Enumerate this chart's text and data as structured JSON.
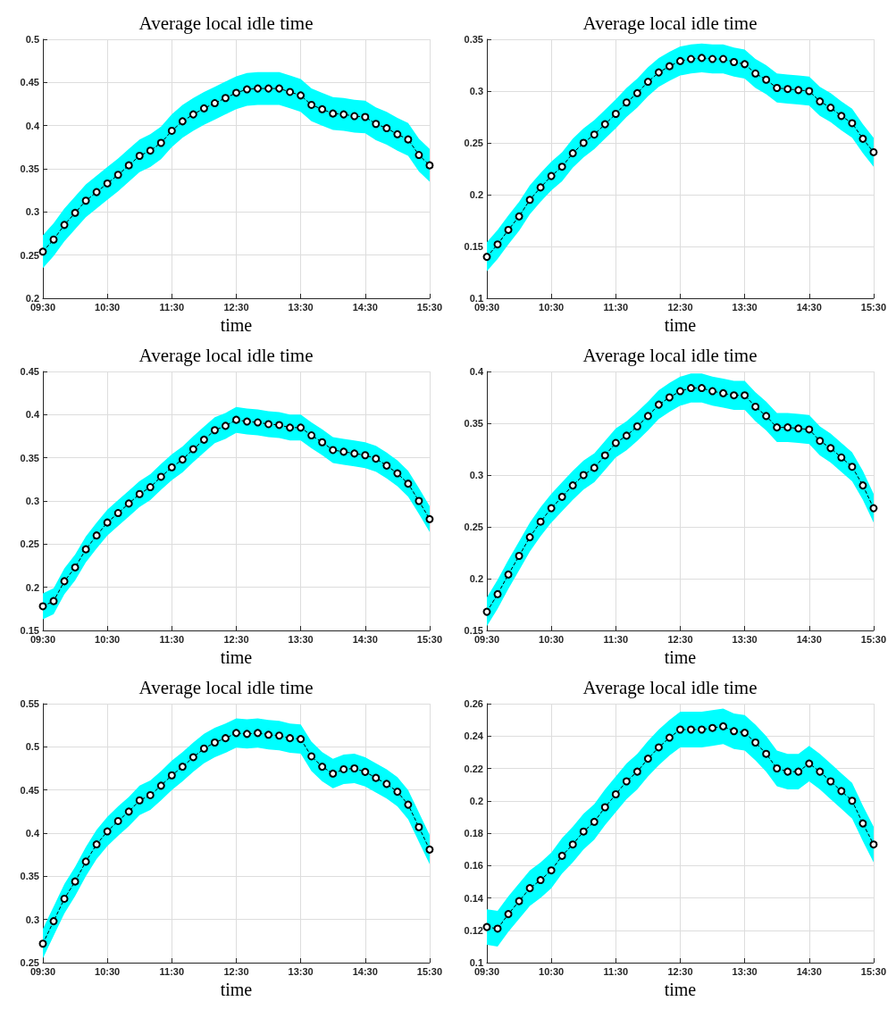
{
  "chart_data": [
    {
      "type": "line",
      "title": "Average local idle time",
      "xlabel": "time",
      "grid": true,
      "marker": "circle",
      "line_style": "dashed",
      "xlim": [
        9.5,
        15.5
      ],
      "xticks": [
        {
          "value": 9.5,
          "label": "09:30"
        },
        {
          "value": 10.5,
          "label": "10:30"
        },
        {
          "value": 11.5,
          "label": "11:30"
        },
        {
          "value": 12.5,
          "label": "12:30"
        },
        {
          "value": 13.5,
          "label": "13:30"
        },
        {
          "value": 14.5,
          "label": "14:30"
        },
        {
          "value": 15.5,
          "label": "15:30"
        }
      ],
      "ylim": [
        0.2,
        0.5
      ],
      "yticks": [
        0.2,
        0.25,
        0.3,
        0.35,
        0.4,
        0.45,
        0.5
      ],
      "x": [
        9.5,
        9.6667,
        9.8333,
        10,
        10.1667,
        10.3333,
        10.5,
        10.6667,
        10.8333,
        11,
        11.1667,
        11.3333,
        11.5,
        11.6667,
        11.8333,
        12,
        12.1667,
        12.3333,
        12.5,
        12.6667,
        12.8333,
        13,
        13.1667,
        13.3333,
        13.5,
        13.6667,
        13.8333,
        14,
        14.1667,
        14.3333,
        14.5,
        14.6667,
        14.8333,
        15,
        15.1667,
        15.3333,
        15.5
      ],
      "series": [
        {
          "color": "#000000",
          "values": [
            0.254,
            0.268,
            0.285,
            0.299,
            0.313,
            0.323,
            0.333,
            0.343,
            0.354,
            0.365,
            0.371,
            0.38,
            0.394,
            0.405,
            0.413,
            0.42,
            0.426,
            0.432,
            0.438,
            0.442,
            0.443,
            0.443,
            0.443,
            0.439,
            0.435,
            0.424,
            0.419,
            0.414,
            0.413,
            0.411,
            0.41,
            0.402,
            0.397,
            0.39,
            0.384,
            0.366,
            0.354
          ],
          "lower": [
            0.235,
            0.249,
            0.266,
            0.28,
            0.294,
            0.304,
            0.314,
            0.324,
            0.335,
            0.346,
            0.352,
            0.361,
            0.375,
            0.386,
            0.394,
            0.401,
            0.407,
            0.413,
            0.419,
            0.423,
            0.424,
            0.424,
            0.424,
            0.42,
            0.416,
            0.405,
            0.4,
            0.395,
            0.394,
            0.392,
            0.391,
            0.383,
            0.378,
            0.371,
            0.365,
            0.347,
            0.335
          ],
          "upper": [
            0.273,
            0.287,
            0.304,
            0.318,
            0.332,
            0.342,
            0.352,
            0.362,
            0.373,
            0.384,
            0.39,
            0.399,
            0.413,
            0.424,
            0.432,
            0.439,
            0.445,
            0.451,
            0.457,
            0.461,
            0.462,
            0.462,
            0.462,
            0.458,
            0.454,
            0.443,
            0.438,
            0.433,
            0.432,
            0.43,
            0.429,
            0.421,
            0.416,
            0.409,
            0.403,
            0.385,
            0.373
          ]
        }
      ]
    },
    {
      "type": "line",
      "title": "Average local idle time",
      "xlabel": "time",
      "grid": true,
      "marker": "circle",
      "line_style": "dashed",
      "xlim": [
        9.5,
        15.5
      ],
      "xticks": [
        {
          "value": 9.5,
          "label": "09:30"
        },
        {
          "value": 10.5,
          "label": "10:30"
        },
        {
          "value": 11.5,
          "label": "11:30"
        },
        {
          "value": 12.5,
          "label": "12:30"
        },
        {
          "value": 13.5,
          "label": "13:30"
        },
        {
          "value": 14.5,
          "label": "14:30"
        },
        {
          "value": 15.5,
          "label": "15:30"
        }
      ],
      "ylim": [
        0.1,
        0.35
      ],
      "yticks": [
        0.1,
        0.15,
        0.2,
        0.25,
        0.3,
        0.35
      ],
      "x": [
        9.5,
        9.6667,
        9.8333,
        10,
        10.1667,
        10.3333,
        10.5,
        10.6667,
        10.8333,
        11,
        11.1667,
        11.3333,
        11.5,
        11.6667,
        11.8333,
        12,
        12.1667,
        12.3333,
        12.5,
        12.6667,
        12.8333,
        13,
        13.1667,
        13.3333,
        13.5,
        13.6667,
        13.8333,
        14,
        14.1667,
        14.3333,
        14.5,
        14.6667,
        14.8333,
        15,
        15.1667,
        15.3333,
        15.5
      ],
      "series": [
        {
          "color": "#000000",
          "values": [
            0.14,
            0.152,
            0.166,
            0.179,
            0.195,
            0.207,
            0.218,
            0.227,
            0.24,
            0.25,
            0.258,
            0.268,
            0.278,
            0.289,
            0.298,
            0.309,
            0.318,
            0.324,
            0.329,
            0.331,
            0.332,
            0.331,
            0.331,
            0.328,
            0.326,
            0.317,
            0.311,
            0.303,
            0.302,
            0.301,
            0.3,
            0.29,
            0.284,
            0.276,
            0.269,
            0.254,
            0.241
          ],
          "lower": [
            0.126,
            0.138,
            0.152,
            0.165,
            0.181,
            0.193,
            0.204,
            0.213,
            0.226,
            0.236,
            0.244,
            0.254,
            0.264,
            0.275,
            0.284,
            0.295,
            0.304,
            0.31,
            0.315,
            0.317,
            0.318,
            0.317,
            0.317,
            0.314,
            0.312,
            0.303,
            0.297,
            0.289,
            0.288,
            0.287,
            0.286,
            0.276,
            0.27,
            0.262,
            0.255,
            0.24,
            0.227
          ],
          "upper": [
            0.154,
            0.166,
            0.18,
            0.193,
            0.209,
            0.221,
            0.232,
            0.241,
            0.254,
            0.264,
            0.272,
            0.282,
            0.292,
            0.303,
            0.312,
            0.323,
            0.332,
            0.338,
            0.343,
            0.345,
            0.346,
            0.345,
            0.345,
            0.342,
            0.34,
            0.331,
            0.325,
            0.317,
            0.316,
            0.315,
            0.314,
            0.304,
            0.298,
            0.29,
            0.283,
            0.268,
            0.255
          ]
        }
      ]
    },
    {
      "type": "line",
      "title": "Average local idle time",
      "xlabel": "time",
      "grid": true,
      "marker": "circle",
      "line_style": "dashed",
      "xlim": [
        9.5,
        15.5
      ],
      "xticks": [
        {
          "value": 9.5,
          "label": "09:30"
        },
        {
          "value": 10.5,
          "label": "10:30"
        },
        {
          "value": 11.5,
          "label": "11:30"
        },
        {
          "value": 12.5,
          "label": "12:30"
        },
        {
          "value": 13.5,
          "label": "13:30"
        },
        {
          "value": 14.5,
          "label": "14:30"
        },
        {
          "value": 15.5,
          "label": "15:30"
        }
      ],
      "ylim": [
        0.15,
        0.45
      ],
      "yticks": [
        0.15,
        0.2,
        0.25,
        0.3,
        0.35,
        0.4,
        0.45
      ],
      "x": [
        9.5,
        9.6667,
        9.8333,
        10,
        10.1667,
        10.3333,
        10.5,
        10.6667,
        10.8333,
        11,
        11.1667,
        11.3333,
        11.5,
        11.6667,
        11.8333,
        12,
        12.1667,
        12.3333,
        12.5,
        12.6667,
        12.8333,
        13,
        13.1667,
        13.3333,
        13.5,
        13.6667,
        13.8333,
        14,
        14.1667,
        14.3333,
        14.5,
        14.6667,
        14.8333,
        15,
        15.1667,
        15.3333,
        15.5
      ],
      "series": [
        {
          "color": "#000000",
          "values": [
            0.178,
            0.184,
            0.207,
            0.223,
            0.244,
            0.26,
            0.275,
            0.286,
            0.297,
            0.308,
            0.316,
            0.328,
            0.339,
            0.348,
            0.36,
            0.371,
            0.382,
            0.387,
            0.394,
            0.392,
            0.391,
            0.389,
            0.388,
            0.385,
            0.385,
            0.376,
            0.368,
            0.359,
            0.357,
            0.355,
            0.353,
            0.349,
            0.341,
            0.332,
            0.32,
            0.3,
            0.279
          ],
          "lower": [
            0.163,
            0.169,
            0.192,
            0.208,
            0.229,
            0.245,
            0.26,
            0.271,
            0.282,
            0.293,
            0.301,
            0.313,
            0.324,
            0.333,
            0.345,
            0.356,
            0.367,
            0.372,
            0.379,
            0.377,
            0.376,
            0.374,
            0.373,
            0.37,
            0.37,
            0.361,
            0.353,
            0.344,
            0.342,
            0.34,
            0.338,
            0.334,
            0.326,
            0.317,
            0.305,
            0.285,
            0.264
          ],
          "upper": [
            0.193,
            0.199,
            0.222,
            0.238,
            0.259,
            0.275,
            0.29,
            0.301,
            0.312,
            0.323,
            0.331,
            0.343,
            0.354,
            0.363,
            0.375,
            0.386,
            0.397,
            0.402,
            0.409,
            0.407,
            0.406,
            0.404,
            0.403,
            0.4,
            0.4,
            0.391,
            0.383,
            0.374,
            0.372,
            0.37,
            0.368,
            0.364,
            0.356,
            0.347,
            0.335,
            0.315,
            0.294
          ]
        }
      ]
    },
    {
      "type": "line",
      "title": "Average local idle time",
      "xlabel": "time",
      "grid": true,
      "marker": "circle",
      "line_style": "dashed",
      "xlim": [
        9.5,
        15.5
      ],
      "xticks": [
        {
          "value": 9.5,
          "label": "09:30"
        },
        {
          "value": 10.5,
          "label": "10:30"
        },
        {
          "value": 11.5,
          "label": "11:30"
        },
        {
          "value": 12.5,
          "label": "12:30"
        },
        {
          "value": 13.5,
          "label": "13:30"
        },
        {
          "value": 14.5,
          "label": "14:30"
        },
        {
          "value": 15.5,
          "label": "15:30"
        }
      ],
      "ylim": [
        0.15,
        0.4
      ],
      "yticks": [
        0.15,
        0.2,
        0.25,
        0.3,
        0.35,
        0.4
      ],
      "x": [
        9.5,
        9.6667,
        9.8333,
        10,
        10.1667,
        10.3333,
        10.5,
        10.6667,
        10.8333,
        11,
        11.1667,
        11.3333,
        11.5,
        11.6667,
        11.8333,
        12,
        12.1667,
        12.3333,
        12.5,
        12.6667,
        12.8333,
        13,
        13.1667,
        13.3333,
        13.5,
        13.6667,
        13.8333,
        14,
        14.1667,
        14.3333,
        14.5,
        14.6667,
        14.8333,
        15,
        15.1667,
        15.3333,
        15.5
      ],
      "series": [
        {
          "color": "#000000",
          "values": [
            0.168,
            0.185,
            0.204,
            0.222,
            0.24,
            0.255,
            0.268,
            0.279,
            0.29,
            0.3,
            0.307,
            0.319,
            0.331,
            0.338,
            0.347,
            0.357,
            0.368,
            0.375,
            0.381,
            0.384,
            0.384,
            0.381,
            0.379,
            0.377,
            0.377,
            0.366,
            0.357,
            0.346,
            0.346,
            0.345,
            0.344,
            0.333,
            0.326,
            0.317,
            0.308,
            0.29,
            0.268
          ],
          "lower": [
            0.154,
            0.171,
            0.19,
            0.208,
            0.226,
            0.241,
            0.254,
            0.265,
            0.276,
            0.286,
            0.293,
            0.305,
            0.317,
            0.324,
            0.333,
            0.343,
            0.354,
            0.361,
            0.367,
            0.37,
            0.37,
            0.367,
            0.365,
            0.363,
            0.363,
            0.352,
            0.343,
            0.332,
            0.332,
            0.331,
            0.33,
            0.319,
            0.312,
            0.303,
            0.294,
            0.276,
            0.254
          ],
          "upper": [
            0.182,
            0.199,
            0.218,
            0.236,
            0.254,
            0.269,
            0.282,
            0.293,
            0.304,
            0.314,
            0.321,
            0.333,
            0.345,
            0.352,
            0.361,
            0.371,
            0.382,
            0.389,
            0.395,
            0.398,
            0.398,
            0.395,
            0.393,
            0.391,
            0.391,
            0.38,
            0.371,
            0.36,
            0.36,
            0.359,
            0.358,
            0.347,
            0.34,
            0.331,
            0.322,
            0.304,
            0.282
          ]
        }
      ]
    },
    {
      "type": "line",
      "title": "Average local idle time",
      "xlabel": "time",
      "grid": true,
      "marker": "circle",
      "line_style": "dashed",
      "xlim": [
        9.5,
        15.5
      ],
      "xticks": [
        {
          "value": 9.5,
          "label": "09:30"
        },
        {
          "value": 10.5,
          "label": "10:30"
        },
        {
          "value": 11.5,
          "label": "11:30"
        },
        {
          "value": 12.5,
          "label": "12:30"
        },
        {
          "value": 13.5,
          "label": "13:30"
        },
        {
          "value": 14.5,
          "label": "14:30"
        },
        {
          "value": 15.5,
          "label": "15:30"
        }
      ],
      "ylim": [
        0.25,
        0.55
      ],
      "yticks": [
        0.25,
        0.3,
        0.35,
        0.4,
        0.45,
        0.5,
        0.55
      ],
      "x": [
        9.5,
        9.6667,
        9.8333,
        10,
        10.1667,
        10.3333,
        10.5,
        10.6667,
        10.8333,
        11,
        11.1667,
        11.3333,
        11.5,
        11.6667,
        11.8333,
        12,
        12.1667,
        12.3333,
        12.5,
        12.6667,
        12.8333,
        13,
        13.1667,
        13.3333,
        13.5,
        13.6667,
        13.8333,
        14,
        14.1667,
        14.3333,
        14.5,
        14.6667,
        14.8333,
        15,
        15.1667,
        15.3333,
        15.5
      ],
      "series": [
        {
          "color": "#000000",
          "values": [
            0.272,
            0.298,
            0.324,
            0.344,
            0.367,
            0.387,
            0.402,
            0.414,
            0.425,
            0.438,
            0.444,
            0.455,
            0.467,
            0.477,
            0.488,
            0.498,
            0.505,
            0.51,
            0.516,
            0.515,
            0.516,
            0.514,
            0.513,
            0.51,
            0.509,
            0.489,
            0.477,
            0.469,
            0.474,
            0.475,
            0.471,
            0.464,
            0.457,
            0.448,
            0.433,
            0.407,
            0.381
          ],
          "lower": [
            0.255,
            0.281,
            0.307,
            0.327,
            0.35,
            0.37,
            0.385,
            0.397,
            0.408,
            0.421,
            0.427,
            0.438,
            0.45,
            0.46,
            0.471,
            0.481,
            0.488,
            0.493,
            0.499,
            0.498,
            0.499,
            0.497,
            0.496,
            0.493,
            0.492,
            0.472,
            0.46,
            0.452,
            0.457,
            0.458,
            0.454,
            0.447,
            0.44,
            0.431,
            0.416,
            0.39,
            0.364
          ],
          "upper": [
            0.289,
            0.315,
            0.341,
            0.361,
            0.384,
            0.404,
            0.419,
            0.431,
            0.442,
            0.455,
            0.461,
            0.472,
            0.484,
            0.494,
            0.505,
            0.515,
            0.522,
            0.527,
            0.533,
            0.532,
            0.533,
            0.531,
            0.53,
            0.527,
            0.526,
            0.506,
            0.494,
            0.486,
            0.491,
            0.492,
            0.488,
            0.481,
            0.474,
            0.465,
            0.45,
            0.424,
            0.398
          ]
        }
      ]
    },
    {
      "type": "line",
      "title": "Average local idle time",
      "xlabel": "time",
      "grid": true,
      "marker": "circle",
      "line_style": "dashed",
      "xlim": [
        9.5,
        15.5
      ],
      "xticks": [
        {
          "value": 9.5,
          "label": "09:30"
        },
        {
          "value": 10.5,
          "label": "10:30"
        },
        {
          "value": 11.5,
          "label": "11:30"
        },
        {
          "value": 12.5,
          "label": "12:30"
        },
        {
          "value": 13.5,
          "label": "13:30"
        },
        {
          "value": 14.5,
          "label": "14:30"
        },
        {
          "value": 15.5,
          "label": "15:30"
        }
      ],
      "ylim": [
        0.1,
        0.26
      ],
      "yticks": [
        0.1,
        0.12,
        0.14,
        0.16,
        0.18,
        0.2,
        0.22,
        0.24,
        0.26
      ],
      "x": [
        9.5,
        9.6667,
        9.8333,
        10,
        10.1667,
        10.3333,
        10.5,
        10.6667,
        10.8333,
        11,
        11.1667,
        11.3333,
        11.5,
        11.6667,
        11.8333,
        12,
        12.1667,
        12.3333,
        12.5,
        12.6667,
        12.8333,
        13,
        13.1667,
        13.3333,
        13.5,
        13.6667,
        13.8333,
        14,
        14.1667,
        14.3333,
        14.5,
        14.6667,
        14.8333,
        15,
        15.1667,
        15.3333,
        15.5
      ],
      "series": [
        {
          "color": "#000000",
          "values": [
            0.122,
            0.121,
            0.13,
            0.138,
            0.146,
            0.151,
            0.157,
            0.166,
            0.173,
            0.181,
            0.187,
            0.196,
            0.204,
            0.212,
            0.218,
            0.226,
            0.233,
            0.239,
            0.244,
            0.244,
            0.244,
            0.245,
            0.246,
            0.243,
            0.242,
            0.236,
            0.229,
            0.22,
            0.218,
            0.218,
            0.223,
            0.218,
            0.212,
            0.206,
            0.2,
            0.186,
            0.173
          ],
          "lower": [
            0.111,
            0.11,
            0.119,
            0.127,
            0.135,
            0.14,
            0.146,
            0.155,
            0.162,
            0.17,
            0.176,
            0.185,
            0.193,
            0.201,
            0.207,
            0.215,
            0.222,
            0.228,
            0.233,
            0.233,
            0.233,
            0.234,
            0.235,
            0.232,
            0.231,
            0.225,
            0.218,
            0.209,
            0.207,
            0.207,
            0.212,
            0.207,
            0.201,
            0.195,
            0.189,
            0.175,
            0.162
          ],
          "upper": [
            0.133,
            0.132,
            0.141,
            0.149,
            0.157,
            0.162,
            0.168,
            0.177,
            0.184,
            0.192,
            0.198,
            0.207,
            0.215,
            0.223,
            0.229,
            0.237,
            0.244,
            0.25,
            0.255,
            0.255,
            0.255,
            0.256,
            0.257,
            0.254,
            0.253,
            0.247,
            0.24,
            0.231,
            0.229,
            0.229,
            0.234,
            0.229,
            0.223,
            0.217,
            0.211,
            0.197,
            0.184
          ]
        }
      ]
    }
  ]
}
